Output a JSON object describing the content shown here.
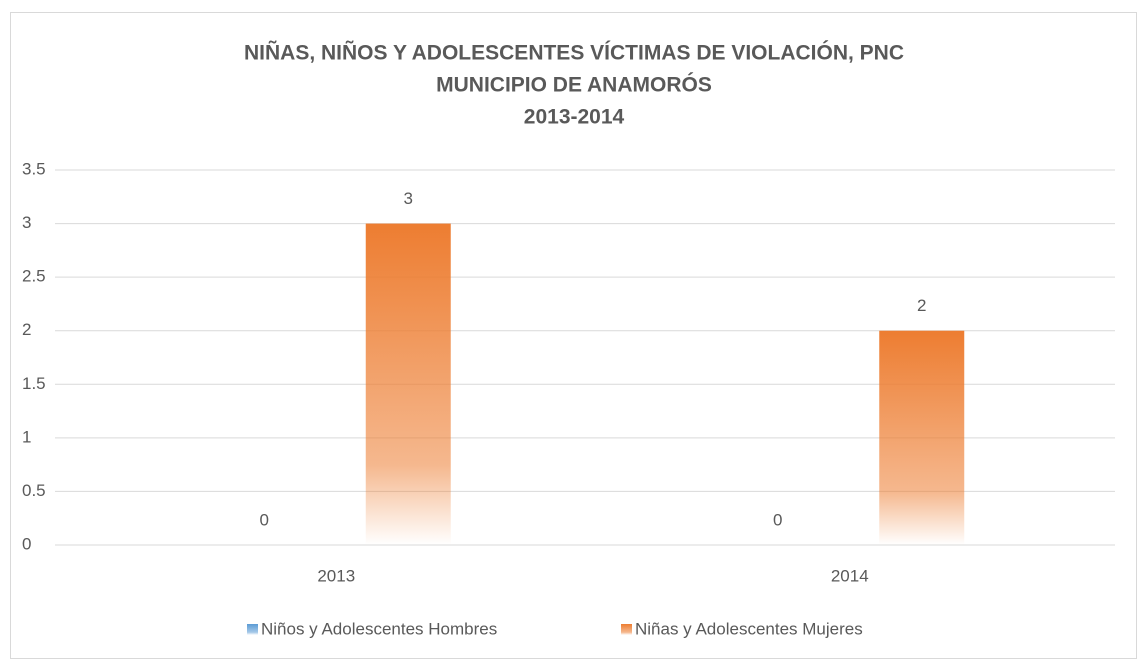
{
  "chart_data": {
    "type": "bar",
    "title": [
      "NIÑAS, NIÑOS Y ADOLESCENTES VÍCTIMAS DE VIOLACIÓN, PNC",
      "MUNICIPIO DE ANAMORÓS",
      "2013-2014"
    ],
    "categories": [
      "2013",
      "2014"
    ],
    "series": [
      {
        "name": "Niños y Adolescentes Hombres",
        "color": "#5b9bd5",
        "values": [
          0,
          0
        ]
      },
      {
        "name": "Niñas y Adolescentes Mujeres",
        "color": "#ed7d31",
        "values": [
          3,
          2
        ]
      }
    ],
    "ylim": [
      0,
      3.5
    ],
    "yticks": [
      0,
      0.5,
      1,
      1.5,
      2,
      2.5,
      3,
      3.5
    ],
    "grid": true,
    "legend": "bottom"
  }
}
